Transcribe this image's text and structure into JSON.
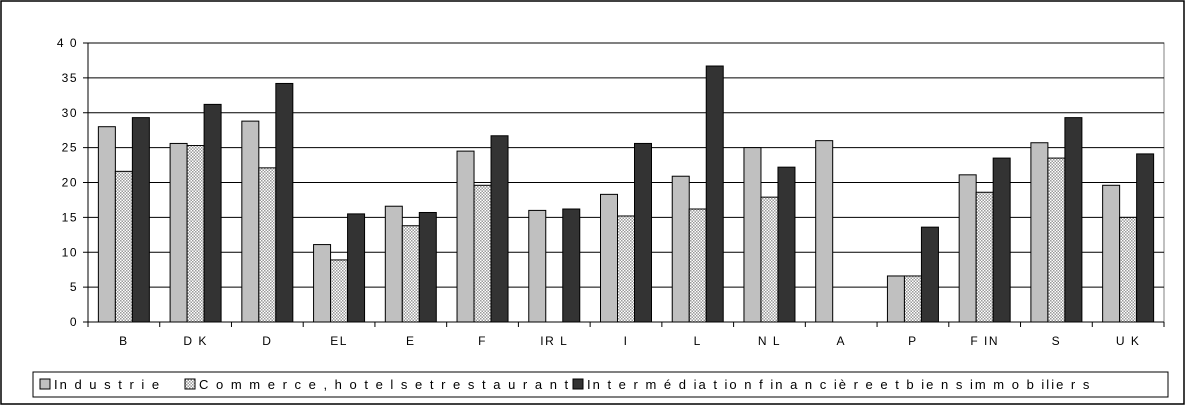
{
  "chart_data": {
    "type": "bar",
    "title": "",
    "xlabel": "",
    "ylabel": "",
    "ylim": [
      0,
      40
    ],
    "yticks": [
      0,
      5,
      10,
      15,
      20,
      25,
      30,
      35,
      40
    ],
    "ytick_labels": [
      "0",
      "5",
      "10",
      "15",
      "20",
      "25",
      "30",
      "35",
      "4 0"
    ],
    "grid": true,
    "legend_position": "bottom",
    "categories": [
      "B",
      "D K",
      "D",
      "EL",
      "E",
      "F",
      "IR L",
      "I",
      "L",
      "N L",
      "A",
      "P",
      "F IN",
      "S",
      "U K"
    ],
    "series": [
      {
        "name": "In d u s t r i e",
        "color": "#c0c0c0",
        "pattern": "solid",
        "values": [
          28,
          25.6,
          28.8,
          11.1,
          16.6,
          24.5,
          16,
          18.3,
          20.9,
          25,
          26,
          6.6,
          21.1,
          25.7,
          19.6
        ]
      },
      {
        "name": "C o m m e r c e ,  h o t e l s  e t r e s t a u r a n t s",
        "color": "#d8d8d8",
        "pattern": "dotted",
        "values": [
          21.6,
          25.3,
          22.1,
          8.9,
          13.8,
          19.6,
          null,
          15.2,
          16.2,
          17.9,
          null,
          6.6,
          18.6,
          23.5,
          15
        ]
      },
      {
        "name": "In t e r m  é d ia t io n  f in a n c iè r e  e t b ie n s  im  m  o b ilie r s",
        "color": "#333333",
        "pattern": "solid",
        "values": [
          29.3,
          31.2,
          34.2,
          15.5,
          15.7,
          26.7,
          16.2,
          25.6,
          36.7,
          22.2,
          null,
          13.6,
          23.5,
          29.3,
          24.1
        ]
      }
    ]
  }
}
